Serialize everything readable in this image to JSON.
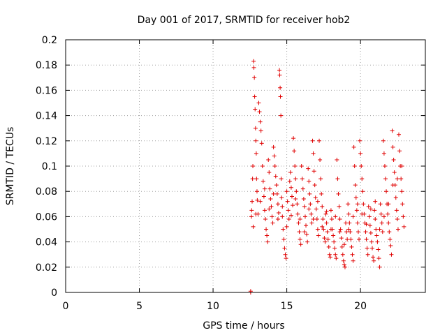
{
  "chart_data": {
    "type": "scatter",
    "title": "Day 001 of 2017, SRMTID for receiver hob2",
    "xlabel": "GPS time / hours",
    "ylabel": "SRMTID / TECUs",
    "xlim": [
      0,
      24.4
    ],
    "ylim": [
      0,
      0.2
    ],
    "x_ticks": [
      0,
      5,
      10,
      15,
      20
    ],
    "y_ticks": [
      0,
      0.02,
      0.04,
      0.06,
      0.08,
      0.1,
      0.12,
      0.14,
      0.16,
      0.18,
      0.2
    ],
    "x_tick_labels": [
      "0",
      "5",
      "10",
      "15",
      "20"
    ],
    "y_tick_labels": [
      "0",
      "0.02",
      "0.04",
      "0.06",
      "0.08",
      "0.1",
      "0.12",
      "0.14",
      "0.16",
      "0.18",
      "0.2"
    ],
    "grid": true,
    "marker": "+",
    "color": "#e00000",
    "series": [
      {
        "name": "SRMTID",
        "points": [
          [
            12.55,
            0.001
          ],
          [
            12.55,
            0.0
          ],
          [
            12.6,
            0.06
          ],
          [
            12.62,
            0.065
          ],
          [
            12.65,
            0.072
          ],
          [
            12.68,
            0.09
          ],
          [
            12.7,
            0.1
          ],
          [
            12.72,
            0.052
          ],
          [
            12.75,
            0.183
          ],
          [
            12.77,
            0.178
          ],
          [
            12.8,
            0.17
          ],
          [
            12.82,
            0.155
          ],
          [
            12.85,
            0.145
          ],
          [
            12.88,
            0.13
          ],
          [
            12.9,
            0.12
          ],
          [
            12.93,
            0.11
          ],
          [
            12.95,
            0.09
          ],
          [
            12.98,
            0.08
          ],
          [
            13.0,
            0.073
          ],
          [
            13.05,
            0.062
          ],
          [
            13.1,
            0.15
          ],
          [
            13.15,
            0.143
          ],
          [
            13.2,
            0.135
          ],
          [
            13.25,
            0.128
          ],
          [
            13.3,
            0.118
          ],
          [
            13.35,
            0.1
          ],
          [
            13.4,
            0.088
          ],
          [
            13.45,
            0.076
          ],
          [
            13.5,
            0.065
          ],
          [
            13.55,
            0.058
          ],
          [
            13.6,
            0.05
          ],
          [
            13.65,
            0.045
          ],
          [
            13.7,
            0.04
          ],
          [
            13.75,
            0.105
          ],
          [
            13.8,
            0.095
          ],
          [
            13.85,
            0.082
          ],
          [
            13.9,
            0.074
          ],
          [
            13.95,
            0.068
          ],
          [
            14.0,
            0.06
          ],
          [
            14.05,
            0.055
          ],
          [
            14.1,
            0.115
          ],
          [
            14.15,
            0.108
          ],
          [
            14.2,
            0.1
          ],
          [
            14.25,
            0.092
          ],
          [
            14.3,
            0.085
          ],
          [
            14.35,
            0.078
          ],
          [
            14.4,
            0.07
          ],
          [
            14.45,
            0.063
          ],
          [
            14.5,
            0.176
          ],
          [
            14.52,
            0.172
          ],
          [
            14.55,
            0.162
          ],
          [
            14.57,
            0.155
          ],
          [
            14.6,
            0.14
          ],
          [
            14.62,
            0.09
          ],
          [
            14.65,
            0.075
          ],
          [
            14.7,
            0.06
          ],
          [
            14.75,
            0.05
          ],
          [
            14.8,
            0.042
          ],
          [
            14.85,
            0.035
          ],
          [
            14.9,
            0.03
          ],
          [
            14.95,
            0.027
          ],
          [
            15.0,
            0.08
          ],
          [
            15.05,
            0.072
          ],
          [
            15.1,
            0.065
          ],
          [
            15.15,
            0.058
          ],
          [
            15.2,
            0.088
          ],
          [
            15.25,
            0.095
          ],
          [
            15.3,
            0.083
          ],
          [
            15.35,
            0.076
          ],
          [
            15.4,
            0.069
          ],
          [
            15.45,
            0.122
          ],
          [
            15.5,
            0.112
          ],
          [
            15.55,
            0.1
          ],
          [
            15.6,
            0.09
          ],
          [
            15.65,
            0.08
          ],
          [
            15.7,
            0.07
          ],
          [
            15.75,
            0.062
          ],
          [
            15.8,
            0.055
          ],
          [
            15.85,
            0.048
          ],
          [
            15.9,
            0.042
          ],
          [
            15.95,
            0.038
          ],
          [
            16.0,
            0.1
          ],
          [
            16.05,
            0.09
          ],
          [
            16.1,
            0.082
          ],
          [
            16.15,
            0.074
          ],
          [
            16.2,
            0.068
          ],
          [
            16.25,
            0.06
          ],
          [
            16.3,
            0.053
          ],
          [
            16.35,
            0.046
          ],
          [
            16.4,
            0.04
          ],
          [
            16.45,
            0.098
          ],
          [
            16.5,
            0.088
          ],
          [
            16.55,
            0.078
          ],
          [
            16.6,
            0.07
          ],
          [
            16.65,
            0.062
          ],
          [
            16.7,
            0.055
          ],
          [
            16.75,
            0.12
          ],
          [
            16.8,
            0.11
          ],
          [
            16.85,
            0.096
          ],
          [
            16.9,
            0.085
          ],
          [
            16.95,
            0.075
          ],
          [
            17.0,
            0.066
          ],
          [
            17.05,
            0.058
          ],
          [
            17.1,
            0.05
          ],
          [
            17.15,
            0.045
          ],
          [
            17.2,
            0.12
          ],
          [
            17.25,
            0.105
          ],
          [
            17.3,
            0.09
          ],
          [
            17.35,
            0.078
          ],
          [
            17.4,
            0.068
          ],
          [
            17.45,
            0.058
          ],
          [
            17.5,
            0.05
          ],
          [
            17.55,
            0.043
          ],
          [
            17.6,
            0.04
          ],
          [
            17.65,
            0.062
          ],
          [
            17.7,
            0.055
          ],
          [
            17.75,
            0.048
          ],
          [
            17.8,
            0.042
          ],
          [
            17.85,
            0.036
          ],
          [
            17.9,
            0.03
          ],
          [
            17.95,
            0.028
          ],
          [
            18.0,
            0.065
          ],
          [
            18.05,
            0.058
          ],
          [
            18.1,
            0.05
          ],
          [
            18.15,
            0.045
          ],
          [
            18.2,
            0.04
          ],
          [
            18.25,
            0.035
          ],
          [
            18.3,
            0.03
          ],
          [
            18.35,
            0.027
          ],
          [
            18.4,
            0.105
          ],
          [
            18.45,
            0.09
          ],
          [
            18.5,
            0.078
          ],
          [
            18.55,
            0.068
          ],
          [
            18.6,
            0.058
          ],
          [
            18.65,
            0.05
          ],
          [
            18.7,
            0.043
          ],
          [
            18.75,
            0.036
          ],
          [
            18.8,
            0.03
          ],
          [
            18.85,
            0.025
          ],
          [
            18.9,
            0.022
          ],
          [
            18.95,
            0.02
          ],
          [
            19.0,
            0.055
          ],
          [
            19.05,
            0.048
          ],
          [
            19.1,
            0.042
          ],
          [
            19.15,
            0.07
          ],
          [
            19.2,
            0.062
          ],
          [
            19.25,
            0.055
          ],
          [
            19.3,
            0.048
          ],
          [
            19.35,
            0.042
          ],
          [
            19.4,
            0.036
          ],
          [
            19.45,
            0.03
          ],
          [
            19.5,
            0.025
          ],
          [
            19.55,
            0.115
          ],
          [
            19.6,
            0.1
          ],
          [
            19.65,
            0.085
          ],
          [
            19.7,
            0.075
          ],
          [
            19.75,
            0.065
          ],
          [
            19.8,
            0.055
          ],
          [
            19.85,
            0.048
          ],
          [
            19.9,
            0.042
          ],
          [
            19.95,
            0.12
          ],
          [
            20.0,
            0.11
          ],
          [
            20.05,
            0.1
          ],
          [
            20.1,
            0.09
          ],
          [
            20.15,
            0.08
          ],
          [
            20.2,
            0.07
          ],
          [
            20.25,
            0.062
          ],
          [
            20.3,
            0.055
          ],
          [
            20.35,
            0.048
          ],
          [
            20.4,
            0.042
          ],
          [
            20.45,
            0.035
          ],
          [
            20.5,
            0.03
          ],
          [
            20.55,
            0.068
          ],
          [
            20.6,
            0.06
          ],
          [
            20.65,
            0.053
          ],
          [
            20.7,
            0.047
          ],
          [
            20.75,
            0.04
          ],
          [
            20.8,
            0.035
          ],
          [
            20.85,
            0.028
          ],
          [
            20.9,
            0.025
          ],
          [
            20.95,
            0.065
          ],
          [
            21.0,
            0.058
          ],
          [
            21.05,
            0.05
          ],
          [
            21.1,
            0.045
          ],
          [
            21.15,
            0.04
          ],
          [
            21.2,
            0.034
          ],
          [
            21.25,
            0.027
          ],
          [
            21.3,
            0.02
          ],
          [
            21.35,
            0.07
          ],
          [
            21.4,
            0.062
          ],
          [
            21.45,
            0.055
          ],
          [
            21.5,
            0.048
          ],
          [
            21.55,
            0.12
          ],
          [
            21.6,
            0.11
          ],
          [
            21.65,
            0.1
          ],
          [
            21.7,
            0.09
          ],
          [
            21.75,
            0.08
          ],
          [
            21.8,
            0.07
          ],
          [
            21.85,
            0.062
          ],
          [
            21.9,
            0.055
          ],
          [
            21.95,
            0.048
          ],
          [
            22.0,
            0.042
          ],
          [
            22.05,
            0.037
          ],
          [
            22.1,
            0.03
          ],
          [
            22.15,
            0.128
          ],
          [
            22.2,
            0.115
          ],
          [
            22.25,
            0.105
          ],
          [
            22.3,
            0.095
          ],
          [
            22.35,
            0.085
          ],
          [
            22.4,
            0.075
          ],
          [
            22.45,
            0.065
          ],
          [
            22.5,
            0.058
          ],
          [
            22.55,
            0.05
          ],
          [
            22.6,
            0.125
          ],
          [
            22.65,
            0.112
          ],
          [
            22.7,
            0.1
          ],
          [
            22.75,
            0.09
          ],
          [
            22.8,
            0.08
          ],
          [
            22.85,
            0.07
          ],
          [
            22.9,
            0.06
          ],
          [
            22.95,
            0.052
          ],
          [
            12.9,
            0.062
          ],
          [
            13.2,
            0.072
          ],
          [
            13.5,
            0.082
          ],
          [
            13.8,
            0.066
          ],
          [
            14.1,
            0.078
          ],
          [
            14.4,
            0.058
          ],
          [
            14.7,
            0.068
          ],
          [
            15.0,
            0.052
          ],
          [
            15.3,
            0.061
          ],
          [
            15.6,
            0.074
          ],
          [
            15.9,
            0.058
          ],
          [
            16.2,
            0.048
          ],
          [
            16.5,
            0.066
          ],
          [
            16.8,
            0.058
          ],
          [
            17.1,
            0.072
          ],
          [
            17.4,
            0.052
          ],
          [
            17.7,
            0.064
          ],
          [
            18.0,
            0.05
          ],
          [
            18.3,
            0.06
          ],
          [
            18.6,
            0.048
          ],
          [
            18.9,
            0.038
          ],
          [
            19.2,
            0.05
          ],
          [
            19.5,
            0.06
          ],
          [
            19.8,
            0.07
          ],
          [
            20.1,
            0.062
          ],
          [
            20.4,
            0.054
          ],
          [
            20.7,
            0.066
          ],
          [
            21.0,
            0.072
          ],
          [
            21.3,
            0.05
          ],
          [
            21.6,
            0.06
          ],
          [
            21.9,
            0.07
          ],
          [
            22.2,
            0.085
          ],
          [
            22.5,
            0.09
          ],
          [
            22.8,
            0.1
          ]
        ]
      }
    ]
  }
}
